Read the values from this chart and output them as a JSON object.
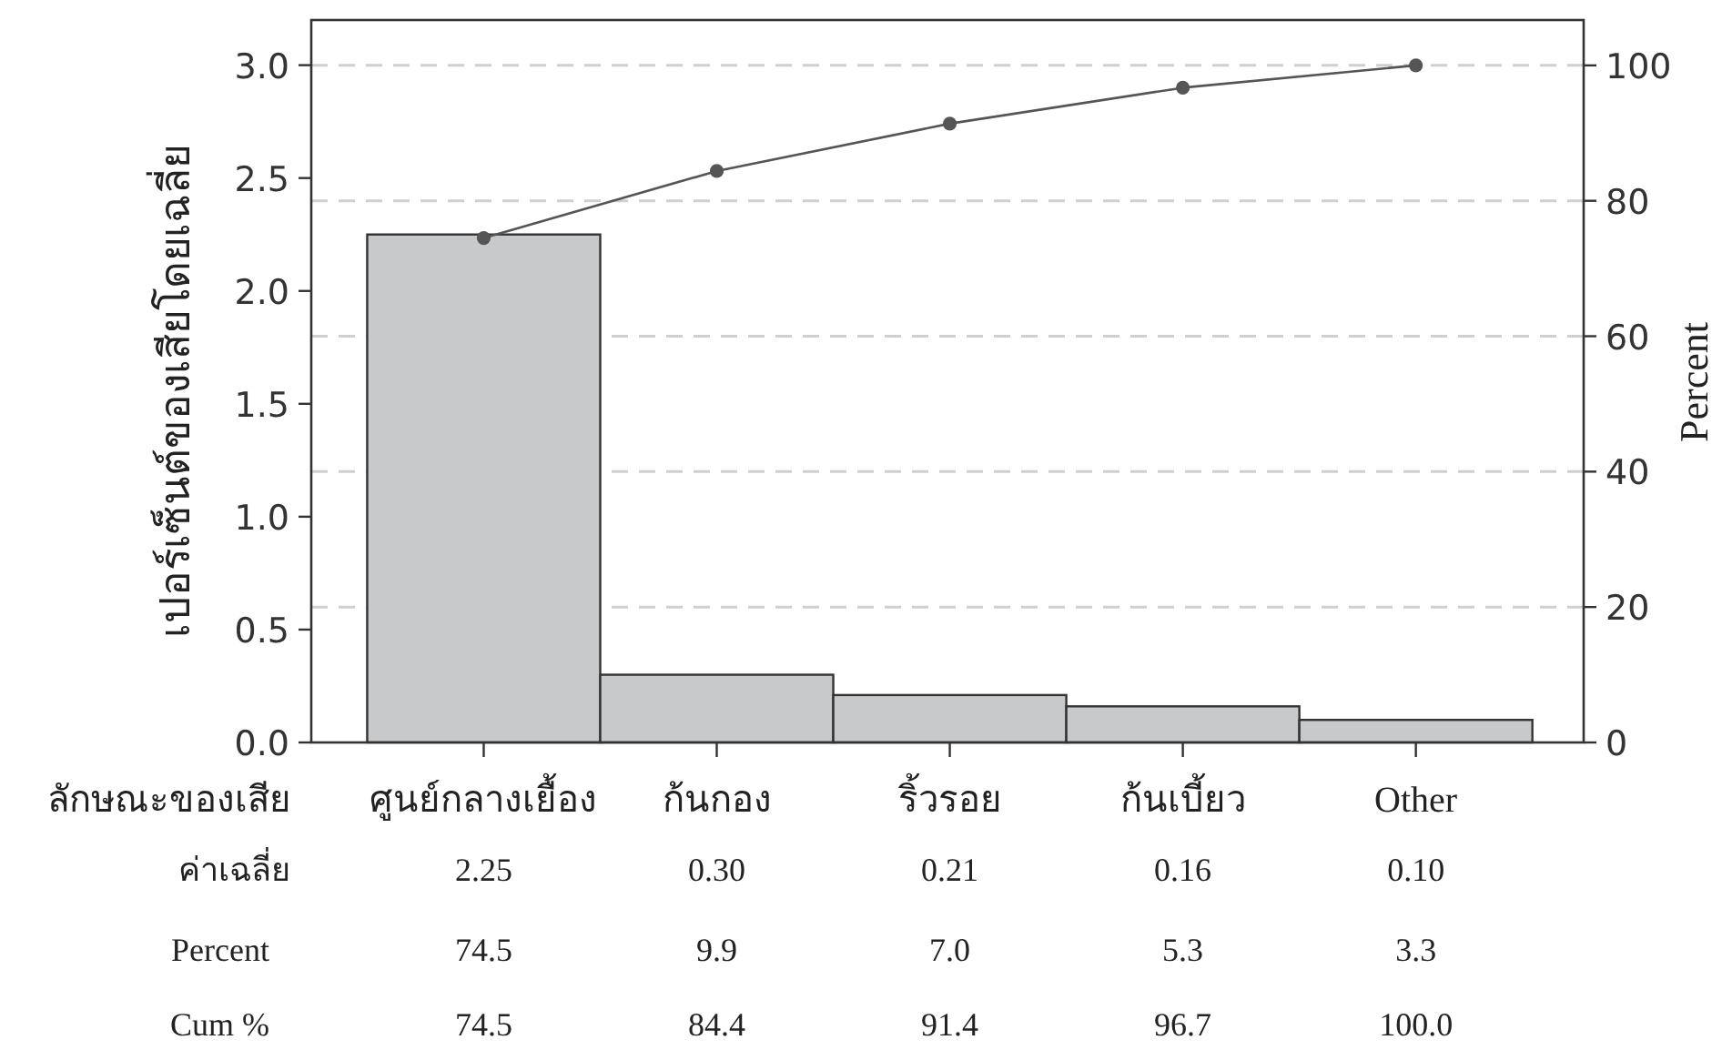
{
  "chart_data": {
    "type": "bar",
    "xlabel": "ลักษณะของเสีย",
    "ylabel": "เปอร์เซ็นต์ของเสียโดยเฉลี่ย",
    "y2label": "Percent",
    "categories": [
      "ศูนย์กลางเยื้อง",
      "ก้นกอง",
      "ริ้วรอย",
      "ก้นเบี้ยว",
      "Other"
    ],
    "series": [
      {
        "color": "#c8c9cb",
        "values": [
          2.25,
          0.3,
          0.21,
          0.16,
          0.1
        ],
        "value_labels": [
          "2.25",
          "0.30",
          "0.21",
          "0.16",
          "0.10"
        ]
      },
      {
        "type": "line",
        "axis": "y2",
        "color": "#555555",
        "values": [
          74.5,
          84.4,
          91.4,
          96.7,
          100.0
        ],
        "value_labels": [
          "74.5",
          "84.4",
          "91.4",
          "96.7",
          "100.0"
        ]
      }
    ],
    "ylim": [
      0,
      3.2
    ],
    "yticks": [
      {
        "value": 0,
        "label": "0.0"
      },
      {
        "value": 0.5,
        "label": "0.5"
      },
      {
        "value": 1,
        "label": "1.0"
      },
      {
        "value": 1.5,
        "label": "1.5"
      },
      {
        "value": 2,
        "label": "2.0"
      },
      {
        "value": 2.5,
        "label": "2.5"
      },
      {
        "value": 3,
        "label": "3.0"
      }
    ],
    "y2lim": [
      0,
      106.7
    ],
    "y2ticks": [
      0,
      20,
      40,
      60,
      80,
      100
    ],
    "grid": "y2",
    "marker": "circle",
    "annotations": [
      "ค่าเฉลี่ย",
      "Percent",
      "74.5",
      "9.9",
      "7.0",
      "5.3",
      "3.3",
      "Cum %"
    ]
  }
}
